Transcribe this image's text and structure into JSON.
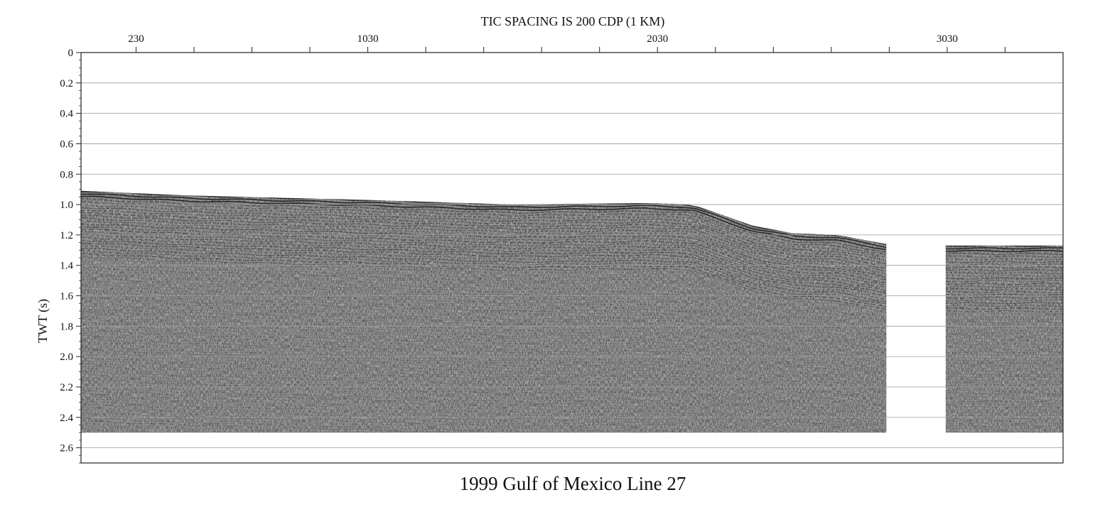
{
  "chart_data": {
    "type": "seismic-section",
    "title": "1999 Gulf of Mexico Line 27",
    "top_axis_title": "TIC SPACING IS 200 CDP (1 KM)",
    "xlabel": "",
    "ylabel": "TWT (s)",
    "x_tick_labels": [
      {
        "value": 230,
        "text": "230"
      },
      {
        "value": 1030,
        "text": "1030"
      },
      {
        "value": 2030,
        "text": "2030"
      },
      {
        "value": 3030,
        "text": "3030"
      }
    ],
    "x_minor_ticks": [
      430,
      630,
      830,
      1230,
      1430,
      1630,
      1830,
      2230,
      2430,
      2630,
      2830,
      3230
    ],
    "xlim": [
      40,
      3430
    ],
    "ylim": [
      0,
      2.7
    ],
    "y_reversed": true,
    "y_ticks": [
      {
        "value": 0,
        "text": "0"
      },
      {
        "value": 0.2,
        "text": "0.2"
      },
      {
        "value": 0.4,
        "text": "0.4"
      },
      {
        "value": 0.6,
        "text": "0.6"
      },
      {
        "value": 0.8,
        "text": "0.8"
      },
      {
        "value": 1.0,
        "text": "1.0"
      },
      {
        "value": 1.2,
        "text": "1.2"
      },
      {
        "value": 1.4,
        "text": "1.4"
      },
      {
        "value": 1.6,
        "text": "1.6"
      },
      {
        "value": 1.8,
        "text": "1.8"
      },
      {
        "value": 2.0,
        "text": "2.0"
      },
      {
        "value": 2.2,
        "text": "2.2"
      },
      {
        "value": 2.4,
        "text": "2.4"
      },
      {
        "value": 2.6,
        "text": "2.6"
      }
    ],
    "horizontal_grid": true,
    "record_end_twt": 2.5,
    "seafloor": [
      {
        "cdp": 40,
        "twt": 0.91
      },
      {
        "cdp": 400,
        "twt": 0.94
      },
      {
        "cdp": 1030,
        "twt": 0.97
      },
      {
        "cdp": 1530,
        "twt": 1.0
      },
      {
        "cdp": 2000,
        "twt": 0.99
      },
      {
        "cdp": 2150,
        "twt": 1.0
      },
      {
        "cdp": 2360,
        "twt": 1.14
      },
      {
        "cdp": 2500,
        "twt": 1.19
      },
      {
        "cdp": 2650,
        "twt": 1.2
      },
      {
        "cdp": 2820,
        "twt": 1.26
      },
      {
        "cdp": 3030,
        "twt": 1.27
      },
      {
        "cdp": 3430,
        "twt": 1.27
      }
    ],
    "data_segments": [
      {
        "cdp_start": 40,
        "cdp_end": 2820
      },
      {
        "cdp_start": 3025,
        "cdp_end": 3430
      }
    ],
    "colors": {
      "trace_dark": "#1a1a1a",
      "background": "#ffffff",
      "grid": "#9a9a9a",
      "axis": "#222222"
    }
  }
}
